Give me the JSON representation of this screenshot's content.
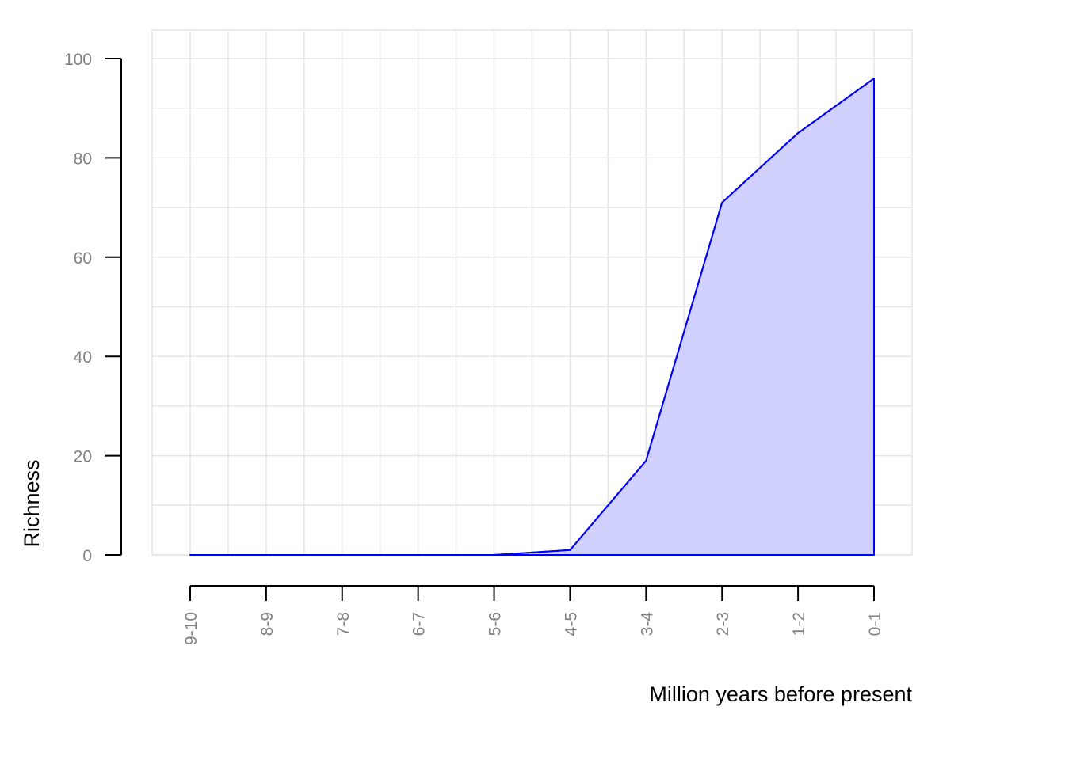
{
  "chart_data": {
    "type": "area",
    "xlabel": "Million years before present",
    "ylabel": "Richness",
    "categories": [
      "9-10",
      "8-9",
      "7-8",
      "6-7",
      "5-6",
      "4-5",
      "3-4",
      "2-3",
      "1-2",
      "0-1"
    ],
    "values": [
      0,
      0,
      0,
      0,
      0,
      1,
      19,
      71,
      85,
      96
    ],
    "ylim": [
      0,
      100
    ],
    "yticks": [
      0,
      20,
      40,
      60,
      80,
      100
    ],
    "grid": true,
    "colors": {
      "line": "#0000ff",
      "fill": "#cfcfff",
      "grid": "#e6e6e6",
      "tick_text": "#808080"
    }
  }
}
